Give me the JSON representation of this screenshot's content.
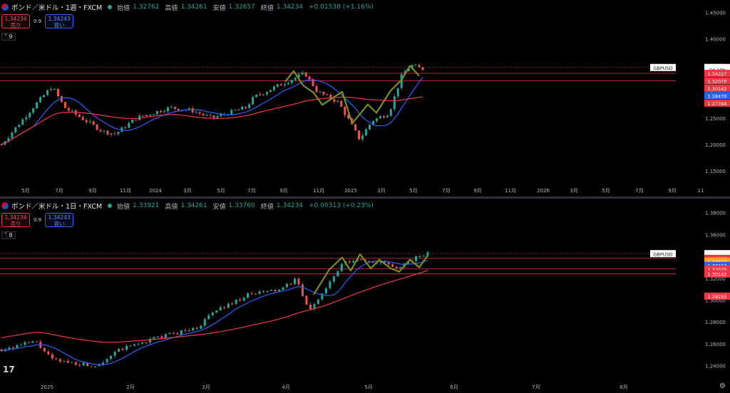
{
  "colors": {
    "up": "#26a69a",
    "down": "#ef5350",
    "ma_blue": "#2962ff",
    "ma_red": "#f23645",
    "zig": "#7f8c1a",
    "bg": "#000000",
    "hline": "#f23645"
  },
  "panes": [
    {
      "title": "ポンド／米ドル・1週・FXCM",
      "ohlc": {
        "o_label": "始値",
        "o": "1.32762",
        "h_label": "高値",
        "h": "1.34261",
        "l_label": "安値",
        "l": "1.32657",
        "c_label": "終値",
        "c": "1.34234",
        "chg": "+0.01538 (+1.16%)"
      },
      "trade": {
        "sell_price": "1.34234",
        "sell_label": "売り",
        "spread": "0.9",
        "buy_price": "1.34243",
        "buy_label": "買い"
      },
      "indicator_count": "9",
      "price_labels": [
        {
          "text": "GBPUSD",
          "price": 1.3458,
          "kind": "symbol"
        },
        {
          "text": "1.34234",
          "price": 1.3458,
          "kind": "last"
        },
        {
          "text": "2d 19h",
          "price": 1.3423,
          "kind": "timer"
        },
        {
          "text": "1.34227",
          "price": 1.3347,
          "kind": "red"
        },
        {
          "text": "1.32070",
          "price": 1.3206,
          "kind": "red"
        },
        {
          "text": "1.30142",
          "price": 1.3065,
          "kind": "red"
        },
        {
          "text": "1.28470",
          "price": 1.2925,
          "kind": "blue"
        },
        {
          "text": "1.27764",
          "price": 1.2784,
          "kind": "red"
        }
      ],
      "axis_labels": [
        "1.45000",
        "1.40000",
        "1.35000",
        "1.30000",
        "1.25000",
        "1.20000",
        "1.15000"
      ],
      "time_labels": [
        "5月",
        "7月",
        "9月",
        "11月",
        "2024",
        "3月",
        "5月",
        "7月",
        "9月",
        "11月",
        "2025",
        "3月",
        "5月",
        "7月",
        "9月",
        "11月",
        "2026",
        "3月",
        "5月",
        "7月",
        "9月",
        "11"
      ]
    },
    {
      "title": "ポンド／米ドル・1日・FXCM",
      "ohlc": {
        "o_label": "始値",
        "o": "1.33921",
        "h_label": "高値",
        "h": "1.34261",
        "l_label": "安値",
        "l": "1.33760",
        "c_label": "終値",
        "c": "1.34234",
        "chg": "+0.00313 (+0.23%)"
      },
      "trade": {
        "sell_price": "1.34234",
        "sell_label": "売り",
        "spread": "0.9",
        "buy_price": "1.34243",
        "buy_label": "買い"
      },
      "indicator_count": "8",
      "price_labels": [
        {
          "text": "GBPUSD",
          "price": 1.3425,
          "kind": "symbol"
        },
        {
          "text": "1.34234",
          "price": 1.3425,
          "kind": "last"
        },
        {
          "text": "18:16:24",
          "price": 1.3405,
          "kind": "timer"
        },
        {
          "text": "1.34227",
          "price": 1.3382,
          "kind": "red"
        },
        {
          "text": "1.33623",
          "price": 1.3356,
          "kind": "orange"
        },
        {
          "text": "1.33153",
          "price": 1.3318,
          "kind": "blue"
        },
        {
          "text": "1.32070",
          "price": 1.3285,
          "kind": "red"
        },
        {
          "text": "1.30142",
          "price": 1.324,
          "kind": "red"
        },
        {
          "text": "1.28255",
          "price": 1.3036,
          "kind": "red"
        }
      ],
      "axis_labels": [
        "1.38000",
        "1.36000",
        "1.34000",
        "1.32000",
        "1.30000",
        "1.28000",
        "1.26000",
        "1.24000"
      ],
      "time_labels": [
        "2025",
        "2月",
        "3月",
        "4月",
        "5月",
        "6月",
        "7月",
        "8月"
      ]
    }
  ],
  "chart_data": [
    {
      "type": "candlestick",
      "title": "ポンド／米ドル・1週・FXCM",
      "ylim": [
        1.13,
        1.46
      ],
      "x": [
        "2023-05",
        "2023-07",
        "2023-09",
        "2023-11",
        "2024-01",
        "2024-03",
        "2024-05",
        "2024-07",
        "2024-09",
        "2024-11",
        "2025-01",
        "2025-03",
        "2025-05"
      ],
      "close": [
        1.245,
        1.275,
        1.26,
        1.225,
        1.27,
        1.262,
        1.258,
        1.28,
        1.32,
        1.29,
        1.24,
        1.265,
        1.3423
      ],
      "hlines": [
        1.34227,
        1.3207,
        1.30142
      ]
    },
    {
      "type": "candlestick",
      "title": "ポンド／米ドル・1日・FXCM",
      "ylim": [
        1.23,
        1.385
      ],
      "x": [
        "2025-01",
        "2025-02",
        "2025-03",
        "2025-04",
        "2025-05"
      ],
      "close": [
        1.245,
        1.26,
        1.29,
        1.3,
        1.3423
      ],
      "hlines": [
        1.34227,
        1.3207,
        1.30142
      ]
    }
  ]
}
